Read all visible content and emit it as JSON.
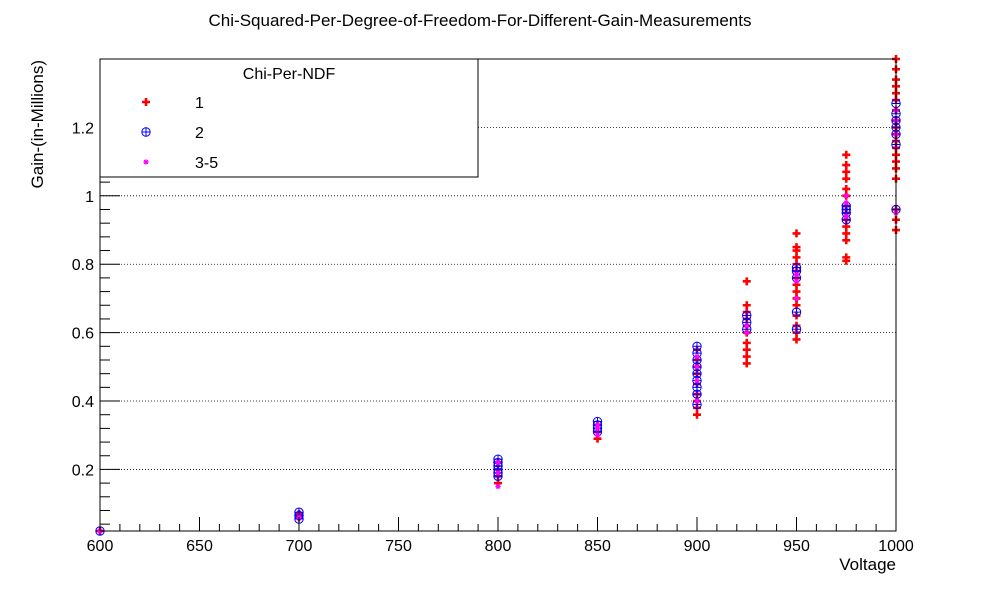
{
  "chart_data": {
    "type": "scatter",
    "title": "Chi-Squared-Per-Degree-of-Freedom-For-Different-Gain-Measurements",
    "xlabel": "Voltage",
    "ylabel": "Gain-(in-Millions)",
    "xlim": [
      600,
      1000
    ],
    "ylim": [
      0.02,
      1.4
    ],
    "x_ticks": [
      600,
      650,
      700,
      750,
      800,
      850,
      900,
      950,
      1000
    ],
    "x_tick_labels": [
      "600",
      "650",
      "700",
      "750",
      "800",
      "850",
      "900",
      "950",
      "1000"
    ],
    "y_ticks": [
      0.2,
      0.4,
      0.6,
      0.8,
      1.0,
      1.2
    ],
    "y_tick_labels": [
      "0.2",
      "0.4",
      "0.6",
      "0.8",
      "1",
      "1.2"
    ],
    "grid": "horizontal-dotted",
    "legend": {
      "title": "Chi-Per-NDF",
      "placement": "top-left"
    },
    "series": [
      {
        "name": "1",
        "color": "#ff0000",
        "marker": "plus-bold",
        "points": [
          [
            600,
            0.02
          ],
          [
            700,
            0.06
          ],
          [
            700,
            0.07
          ],
          [
            800,
            0.16
          ],
          [
            800,
            0.18
          ],
          [
            800,
            0.2
          ],
          [
            800,
            0.22
          ],
          [
            850,
            0.29
          ],
          [
            850,
            0.31
          ],
          [
            850,
            0.33
          ],
          [
            900,
            0.36
          ],
          [
            900,
            0.38
          ],
          [
            900,
            0.4
          ],
          [
            900,
            0.42
          ],
          [
            900,
            0.45
          ],
          [
            900,
            0.48
          ],
          [
            900,
            0.5
          ],
          [
            900,
            0.52
          ],
          [
            900,
            0.55
          ],
          [
            925,
            0.51
          ],
          [
            925,
            0.53
          ],
          [
            925,
            0.55
          ],
          [
            925,
            0.57
          ],
          [
            925,
            0.6
          ],
          [
            925,
            0.62
          ],
          [
            925,
            0.64
          ],
          [
            925,
            0.66
          ],
          [
            925,
            0.68
          ],
          [
            925,
            0.75
          ],
          [
            950,
            0.58
          ],
          [
            950,
            0.6
          ],
          [
            950,
            0.62
          ],
          [
            950,
            0.65
          ],
          [
            950,
            0.68
          ],
          [
            950,
            0.7
          ],
          [
            950,
            0.72
          ],
          [
            950,
            0.74
          ],
          [
            950,
            0.76
          ],
          [
            950,
            0.78
          ],
          [
            950,
            0.8
          ],
          [
            950,
            0.82
          ],
          [
            950,
            0.84
          ],
          [
            950,
            0.85
          ],
          [
            950,
            0.89
          ],
          [
            975,
            0.81
          ],
          [
            975,
            0.82
          ],
          [
            975,
            0.87
          ],
          [
            975,
            0.89
          ],
          [
            975,
            0.91
          ],
          [
            975,
            0.93
          ],
          [
            975,
            0.95
          ],
          [
            975,
            0.97
          ],
          [
            975,
            1.0
          ],
          [
            975,
            1.02
          ],
          [
            975,
            1.05
          ],
          [
            975,
            1.07
          ],
          [
            975,
            1.09
          ],
          [
            975,
            1.12
          ],
          [
            1000,
            0.9
          ],
          [
            1000,
            0.93
          ],
          [
            1000,
            0.96
          ],
          [
            1000,
            1.05
          ],
          [
            1000,
            1.08
          ],
          [
            1000,
            1.1
          ],
          [
            1000,
            1.12
          ],
          [
            1000,
            1.14
          ],
          [
            1000,
            1.16
          ],
          [
            1000,
            1.18
          ],
          [
            1000,
            1.2
          ],
          [
            1000,
            1.22
          ],
          [
            1000,
            1.25
          ],
          [
            1000,
            1.28
          ],
          [
            1000,
            1.3
          ],
          [
            1000,
            1.32
          ],
          [
            1000,
            1.34
          ],
          [
            1000,
            1.37
          ],
          [
            1000,
            1.4
          ]
        ]
      },
      {
        "name": "2",
        "color": "#0000ff",
        "marker": "circle-plus",
        "points": [
          [
            600,
            0.02
          ],
          [
            700,
            0.055
          ],
          [
            700,
            0.065
          ],
          [
            700,
            0.075
          ],
          [
            800,
            0.18
          ],
          [
            800,
            0.19
          ],
          [
            800,
            0.2
          ],
          [
            800,
            0.21
          ],
          [
            800,
            0.22
          ],
          [
            800,
            0.23
          ],
          [
            850,
            0.31
          ],
          [
            850,
            0.32
          ],
          [
            850,
            0.33
          ],
          [
            850,
            0.34
          ],
          [
            900,
            0.39
          ],
          [
            900,
            0.42
          ],
          [
            900,
            0.44
          ],
          [
            900,
            0.46
          ],
          [
            900,
            0.48
          ],
          [
            900,
            0.5
          ],
          [
            900,
            0.52
          ],
          [
            900,
            0.54
          ],
          [
            900,
            0.56
          ],
          [
            925,
            0.61
          ],
          [
            925,
            0.63
          ],
          [
            925,
            0.65
          ],
          [
            950,
            0.61
          ],
          [
            950,
            0.66
          ],
          [
            950,
            0.76
          ],
          [
            950,
            0.78
          ],
          [
            950,
            0.79
          ],
          [
            975,
            0.93
          ],
          [
            975,
            0.95
          ],
          [
            975,
            0.96
          ],
          [
            975,
            0.97
          ],
          [
            1000,
            0.96
          ],
          [
            1000,
            1.15
          ],
          [
            1000,
            1.18
          ],
          [
            1000,
            1.2
          ],
          [
            1000,
            1.22
          ],
          [
            1000,
            1.24
          ],
          [
            1000,
            1.27
          ]
        ]
      },
      {
        "name": "3-5",
        "color": "#ff00ff",
        "marker": "star",
        "points": [
          [
            600,
            0.02
          ],
          [
            700,
            0.06
          ],
          [
            800,
            0.15
          ],
          [
            800,
            0.19
          ],
          [
            800,
            0.22
          ],
          [
            850,
            0.3
          ],
          [
            850,
            0.32
          ],
          [
            850,
            0.33
          ],
          [
            900,
            0.4
          ],
          [
            900,
            0.46
          ],
          [
            900,
            0.5
          ],
          [
            900,
            0.53
          ],
          [
            925,
            0.6
          ],
          [
            925,
            0.62
          ],
          [
            950,
            0.7
          ],
          [
            950,
            0.75
          ],
          [
            950,
            0.77
          ],
          [
            975,
            0.94
          ],
          [
            975,
            0.98
          ],
          [
            975,
            1.0
          ],
          [
            1000,
            0.95
          ],
          [
            1000,
            1.18
          ],
          [
            1000,
            1.22
          ],
          [
            1000,
            1.25
          ]
        ]
      }
    ]
  }
}
